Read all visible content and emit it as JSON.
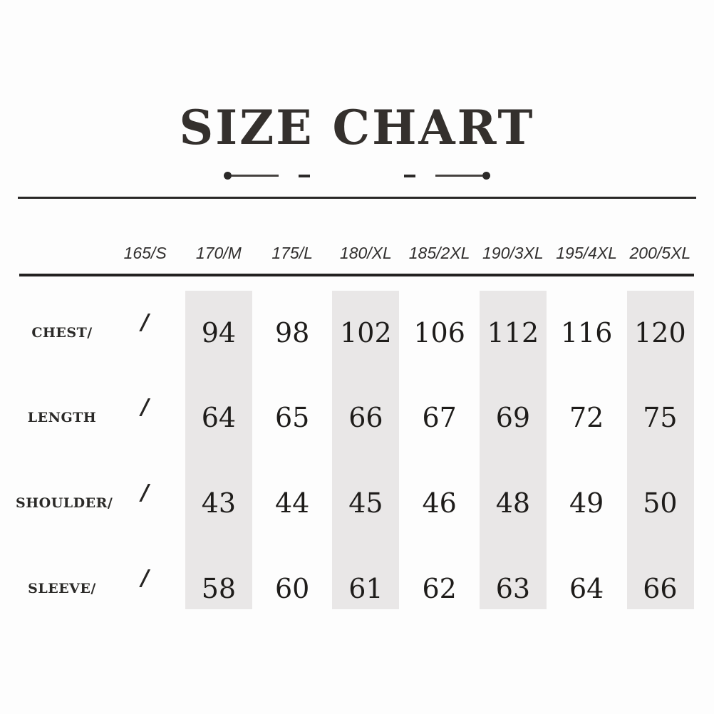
{
  "title": "SIZE CHART",
  "colors": {
    "stripe_background": "#e9e7e7",
    "rule": "#2a2827",
    "title_text": "#34302d",
    "number_text": "#1e1c1a"
  },
  "chart_data": {
    "type": "table",
    "title": "SIZE CHART",
    "columns": [
      "165/S",
      "170/M",
      "175/L",
      "180/XL",
      "185/2XL",
      "190/3XL",
      "195/4XL",
      "200/5XL"
    ],
    "rows": [
      {
        "label": "CHEST/",
        "values": [
          "/",
          "94",
          "98",
          "102",
          "106",
          "112",
          "116",
          "120"
        ]
      },
      {
        "label": "LENGTH",
        "values": [
          "/",
          "64",
          "65",
          "66",
          "67",
          "69",
          "72",
          "75"
        ]
      },
      {
        "label": "SHOULDER/",
        "values": [
          "/",
          "43",
          "44",
          "45",
          "46",
          "48",
          "49",
          "50"
        ]
      },
      {
        "label": "SLEEVE/",
        "values": [
          "/",
          "58",
          "60",
          "61",
          "62",
          "63",
          "64",
          "66"
        ]
      }
    ],
    "striped_columns": [
      "170/M",
      "180/XL",
      "190/3XL",
      "200/5XL"
    ],
    "layout_hints": {
      "grid": "off",
      "header_style": "italic",
      "body_style": "serif numerals"
    }
  }
}
